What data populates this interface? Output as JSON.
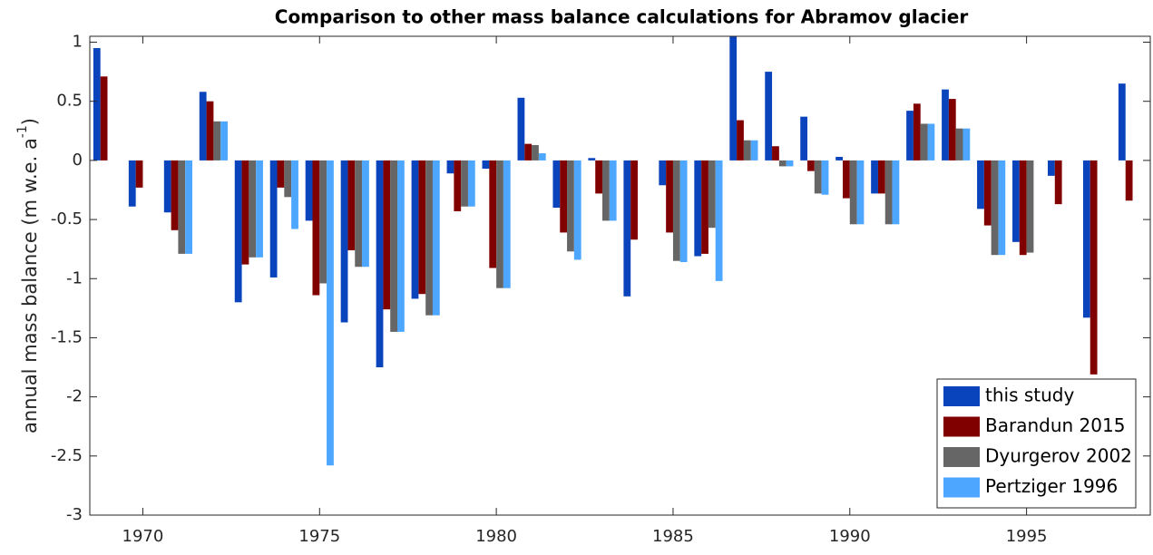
{
  "chart_data": {
    "type": "bar",
    "title": "Comparison to other mass balance calculations for Abramov glacier",
    "ylabel": "annual mass balance (m w.e. a",
    "ylabel_sup": "-1",
    "ylabel_end": ")",
    "x": [
      1969,
      1970,
      1971,
      1972,
      1973,
      1974,
      1975,
      1976,
      1977,
      1978,
      1979,
      1980,
      1981,
      1982,
      1983,
      1984,
      1985,
      1986,
      1987,
      1988,
      1989,
      1990,
      1991,
      1992,
      1993,
      1994,
      1995,
      1996,
      1997,
      1998
    ],
    "xlim": [
      1968.5,
      1998.5
    ],
    "xticks": [
      1970,
      1975,
      1980,
      1985,
      1990,
      1995
    ],
    "ylim": [
      -3,
      1.05
    ],
    "yticks": [
      -3,
      -2.5,
      -2,
      -1.5,
      -1,
      -0.5,
      0,
      0.5,
      1
    ],
    "legend": "lower right",
    "series": [
      {
        "name": "this study",
        "color": "#0a44bd",
        "values": [
          0.95,
          -0.39,
          -0.44,
          0.58,
          -1.2,
          -0.99,
          -0.51,
          -1.37,
          -1.75,
          -1.17,
          -0.11,
          -0.07,
          0.53,
          -0.4,
          0.02,
          -1.15,
          -0.21,
          -0.81,
          1.06,
          0.75,
          0.37,
          0.03,
          -0.28,
          0.42,
          0.6,
          -0.41,
          -0.69,
          -0.13,
          -1.33,
          0.65
        ]
      },
      {
        "name": "Barandun 2015",
        "color": "#800000",
        "values": [
          0.71,
          -0.23,
          -0.59,
          0.5,
          -0.88,
          -0.23,
          -1.14,
          -0.76,
          -1.26,
          -1.13,
          -0.43,
          -0.91,
          0.14,
          -0.61,
          -0.28,
          -0.67,
          -0.61,
          -0.79,
          0.34,
          0.12,
          -0.09,
          -0.32,
          -0.28,
          0.48,
          0.52,
          -0.55,
          -0.8,
          -0.37,
          -1.81,
          -0.34
        ]
      },
      {
        "name": "Dyurgerov 2002",
        "color": "#666666",
        "values": [
          null,
          null,
          -0.79,
          0.33,
          -0.82,
          -0.31,
          -1.04,
          -0.9,
          -1.45,
          -1.31,
          -0.39,
          -1.08,
          0.13,
          -0.77,
          -0.51,
          null,
          -0.85,
          -0.57,
          0.17,
          -0.05,
          -0.28,
          -0.54,
          -0.54,
          0.31,
          0.27,
          -0.8,
          -0.78,
          null,
          null,
          null
        ]
      },
      {
        "name": "Pertziger 1996",
        "color": "#4da6ff",
        "values": [
          null,
          null,
          -0.79,
          0.33,
          -0.82,
          -0.58,
          -2.58,
          -0.9,
          -1.45,
          -1.31,
          -0.39,
          -1.08,
          0.06,
          -0.84,
          -0.51,
          null,
          -0.86,
          -1.02,
          0.17,
          -0.05,
          -0.29,
          -0.54,
          -0.54,
          0.31,
          0.27,
          -0.8,
          null,
          null,
          null,
          null
        ]
      }
    ]
  }
}
